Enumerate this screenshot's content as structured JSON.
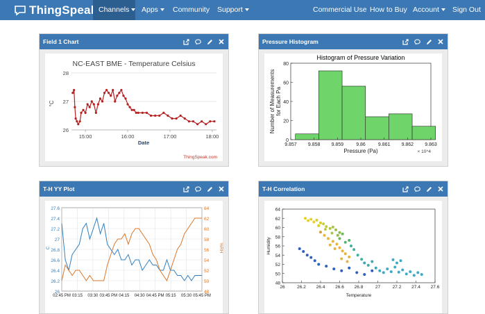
{
  "nav": {
    "brand": "ThingSpeak",
    "brand_tm": "™",
    "items": [
      {
        "label": "Channels",
        "dropdown": true,
        "active": true
      },
      {
        "label": "Apps",
        "dropdown": true
      },
      {
        "label": "Community",
        "dropdown": false
      },
      {
        "label": "Support",
        "dropdown": true
      }
    ],
    "right_items": [
      {
        "label": "Commercial Use",
        "dropdown": false
      },
      {
        "label": "How to Buy",
        "dropdown": false
      },
      {
        "label": "Account",
        "dropdown": true
      },
      {
        "label": "Sign Out",
        "dropdown": false
      }
    ]
  },
  "panels": {
    "field1": {
      "title": "Field 1 Chart"
    },
    "histogram": {
      "title": "Pressure Histogram"
    },
    "yy": {
      "title": "T-H YY Plot"
    },
    "corr": {
      "title": "T-H Correlation"
    }
  },
  "colors": {
    "nav": "#3c78b4",
    "nav_active": "#2d5e90",
    "line_red": "#b52020",
    "bar_green": "#6fd46a",
    "blue": "#2f7fc1",
    "orange": "#d9762a"
  },
  "chart_data": [
    {
      "id": "field1",
      "type": "line",
      "title": "NC-EAST BME - Temperature Celsius",
      "xlabel": "Date",
      "ylabel": "°C",
      "credit": "ThingSpeak.com",
      "x_ticks": [
        {
          "v": 14.75,
          "label": "15:00"
        },
        {
          "v": 15.75,
          "label": "16:00"
        },
        {
          "v": 16.75,
          "label": "17:00"
        },
        {
          "v": 17.75,
          "label": "18:00"
        }
      ],
      "y_ticks": [
        26,
        27,
        28
      ],
      "xlim": [
        14.42,
        17.85
      ],
      "ylim": [
        26,
        28
      ],
      "x": [
        14.45,
        14.48,
        14.5,
        14.52,
        14.55,
        14.58,
        14.62,
        14.65,
        14.7,
        14.75,
        14.8,
        14.85,
        14.9,
        14.95,
        15.0,
        15.05,
        15.1,
        15.15,
        15.2,
        15.25,
        15.3,
        15.35,
        15.4,
        15.45,
        15.5,
        15.55,
        15.6,
        15.65,
        15.7,
        15.75,
        15.8,
        15.85,
        15.9,
        15.95,
        16.0,
        16.1,
        16.2,
        16.3,
        16.4,
        16.5,
        16.6,
        16.7,
        16.8,
        16.9,
        17.0,
        17.1,
        17.2,
        17.3,
        17.4,
        17.5,
        17.6,
        17.7,
        17.8
      ],
      "y": [
        27.3,
        27.4,
        26.8,
        26.4,
        26.3,
        26.2,
        26.3,
        26.6,
        26.7,
        26.6,
        26.9,
        26.8,
        27.0,
        26.9,
        26.6,
        26.9,
        27.1,
        27.0,
        27.3,
        27.4,
        27.3,
        27.2,
        27.4,
        27.0,
        27.2,
        27.3,
        27.4,
        27.2,
        27.1,
        26.9,
        26.8,
        26.7,
        26.7,
        26.6,
        26.6,
        26.6,
        26.6,
        26.5,
        26.5,
        26.5,
        26.6,
        26.5,
        26.4,
        26.4,
        26.5,
        26.4,
        26.3,
        26.3,
        26.2,
        26.3,
        26.2,
        26.3,
        26.3
      ]
    },
    {
      "id": "histogram",
      "type": "bar",
      "title": "Histogram of Pressure Variation",
      "xlabel": "Pressure (Pa)",
      "ylabel": "Number of Measurements for Each Pa",
      "x_multiplier": "× 10^4",
      "x_ticks": [
        9.857,
        9.858,
        9.859,
        9.86,
        9.861,
        9.862,
        9.863
      ],
      "y_ticks": [
        0,
        20,
        40,
        60,
        80
      ],
      "xlim": [
        9.857,
        9.863
      ],
      "ylim": [
        0,
        80
      ],
      "bins": [
        [
          9.8572,
          9.8582
        ],
        [
          9.8582,
          9.8592
        ],
        [
          9.8592,
          9.8602
        ],
        [
          9.8602,
          9.8612
        ],
        [
          9.8612,
          9.8622
        ],
        [
          9.8622,
          9.8632
        ]
      ],
      "values": [
        6,
        72,
        56,
        24,
        27,
        14
      ]
    },
    {
      "id": "yy",
      "type": "line",
      "ylabel_left": "C",
      "ylabel_right": "%RH",
      "x_ticks": [
        "02:45 PM",
        "03:15",
        "03:30",
        "03:45 PM",
        "04:15",
        "04:30",
        "04:45 PM",
        "05:15",
        "05:30",
        "05:45 PM"
      ],
      "y_left_ticks": [
        26,
        26.2,
        26.4,
        26.6,
        26.8,
        27,
        27.2,
        27.4,
        27.6
      ],
      "y_right_ticks": [
        48,
        50,
        52,
        54,
        56,
        58,
        60,
        62,
        64
      ],
      "ylim_left": [
        26,
        27.6
      ],
      "ylim_right": [
        48,
        64
      ],
      "x": [
        0,
        1,
        2,
        3,
        4,
        5,
        6,
        7,
        8,
        9,
        10,
        11,
        12,
        13,
        14,
        15,
        16,
        17,
        18,
        19,
        20,
        21,
        22,
        23,
        24,
        25,
        26,
        27,
        28,
        29,
        30,
        31,
        32,
        33,
        34,
        35,
        36,
        37,
        38,
        39,
        40
      ],
      "series": [
        {
          "name": "Temperature",
          "axis": "left",
          "values": [
            27.3,
            26.6,
            26.4,
            26.7,
            26.8,
            26.9,
            27.2,
            27.3,
            27.0,
            27.2,
            27.4,
            27.1,
            27.3,
            26.9,
            26.8,
            26.7,
            26.8,
            26.6,
            26.6,
            26.7,
            26.5,
            26.6,
            26.6,
            26.4,
            26.5,
            26.6,
            26.5,
            26.5,
            26.4,
            26.4,
            26.6,
            26.4,
            26.4,
            26.3,
            26.3,
            26.2,
            26.3,
            26.2,
            26.3,
            26.3,
            26.3
          ]
        },
        {
          "name": "Humidity",
          "axis": "right",
          "values": [
            50,
            53,
            52,
            51,
            52,
            52,
            51,
            50,
            51,
            50,
            50,
            50,
            50,
            53,
            55,
            57,
            58,
            58,
            59,
            57,
            59,
            60,
            60,
            59,
            58,
            57,
            55,
            54,
            52,
            51,
            50,
            52,
            54,
            56,
            57,
            59,
            60,
            61,
            62,
            62,
            62
          ]
        }
      ]
    },
    {
      "id": "corr",
      "type": "scatter",
      "xlabel": "Temperature",
      "ylabel": "Humidity",
      "x_ticks": [
        26,
        26.2,
        26.4,
        26.6,
        26.8,
        27,
        27.2,
        27.4,
        27.6
      ],
      "y_ticks": [
        48,
        50,
        52,
        54,
        56,
        58,
        60,
        62,
        64
      ],
      "xlim": [
        26,
        27.6
      ],
      "ylim": [
        48,
        64
      ],
      "points": [
        [
          26.24,
          62.0,
          "#e8d21c"
        ],
        [
          26.27,
          61.5,
          "#e8d21c"
        ],
        [
          26.3,
          61.8,
          "#e8d21c"
        ],
        [
          26.33,
          61.2,
          "#e8d21c"
        ],
        [
          26.36,
          61.6,
          "#d8d020"
        ],
        [
          26.4,
          61.0,
          "#d8d020"
        ],
        [
          26.43,
          60.8,
          "#c8cf30"
        ],
        [
          26.46,
          60.2,
          "#c0cc35"
        ],
        [
          26.5,
          59.8,
          "#b0c840"
        ],
        [
          26.53,
          60.1,
          "#a8c545"
        ],
        [
          26.56,
          59.5,
          "#98c050"
        ],
        [
          26.6,
          58.9,
          "#88bb55"
        ],
        [
          26.63,
          58.6,
          "#70b560"
        ],
        [
          26.38,
          60.4,
          "#d8d020"
        ],
        [
          26.45,
          59.6,
          "#c0cc35"
        ],
        [
          26.52,
          58.8,
          "#a8c545"
        ],
        [
          26.58,
          58.3,
          "#90bd52"
        ],
        [
          26.4,
          59.0,
          "#d0a040"
        ],
        [
          26.44,
          58.3,
          "#e6b540"
        ],
        [
          26.48,
          57.6,
          "#e6b540"
        ],
        [
          26.53,
          57.0,
          "#e6b540"
        ],
        [
          26.57,
          56.4,
          "#e6b540"
        ],
        [
          26.6,
          55.6,
          "#e6b540"
        ],
        [
          26.63,
          54.9,
          "#e6b540"
        ],
        [
          26.66,
          54.3,
          "#e6b540"
        ],
        [
          26.7,
          53.6,
          "#e6b540"
        ],
        [
          26.5,
          56.2,
          "#e6b540"
        ],
        [
          26.55,
          55.4,
          "#e6b540"
        ],
        [
          26.62,
          53.2,
          "#e6b540"
        ],
        [
          26.68,
          52.6,
          "#e6b540"
        ],
        [
          26.72,
          56.0,
          "#3fb0a0"
        ],
        [
          26.75,
          55.2,
          "#3fb0a0"
        ],
        [
          26.79,
          54.0,
          "#3fb0a0"
        ],
        [
          26.83,
          53.1,
          "#3fb0a0"
        ],
        [
          26.86,
          52.3,
          "#3fa8b0"
        ],
        [
          26.9,
          51.8,
          "#3fa8b0"
        ],
        [
          26.94,
          52.6,
          "#3fa8b0"
        ],
        [
          26.98,
          51.2,
          "#3fa8b0"
        ],
        [
          27.02,
          50.6,
          "#3fa8c0"
        ],
        [
          27.06,
          50.2,
          "#3fa8c0"
        ],
        [
          27.1,
          51.0,
          "#40a8c8"
        ],
        [
          27.14,
          50.4,
          "#40a8c8"
        ],
        [
          27.18,
          51.4,
          "#40a8c8"
        ],
        [
          27.22,
          50.3,
          "#40a8c8"
        ],
        [
          27.26,
          50.8,
          "#40a8c8"
        ],
        [
          27.3,
          49.9,
          "#40a8c8"
        ],
        [
          27.34,
          50.4,
          "#40a8c8"
        ],
        [
          27.38,
          49.6,
          "#40a8c8"
        ],
        [
          27.42,
          50.2,
          "#40a8c8"
        ],
        [
          27.46,
          49.8,
          "#40a8c8"
        ],
        [
          27.2,
          52.3,
          "#40a8c8"
        ],
        [
          27.24,
          52.8,
          "#40a8c8"
        ],
        [
          27.16,
          53.0,
          "#40a8c8"
        ],
        [
          26.18,
          55.4,
          "#2f5fbf"
        ],
        [
          26.22,
          54.8,
          "#2f5fbf"
        ],
        [
          26.26,
          54.0,
          "#2f5fbf"
        ],
        [
          26.3,
          53.5,
          "#2f5fbf"
        ],
        [
          26.34,
          52.8,
          "#2f5fbf"
        ],
        [
          26.38,
          52.0,
          "#2f5fbf"
        ],
        [
          26.46,
          51.6,
          "#2f5fbf"
        ],
        [
          26.54,
          51.0,
          "#2f5fbf"
        ],
        [
          26.62,
          50.6,
          "#2f5fbf"
        ],
        [
          26.7,
          51.2,
          "#2f5fbf"
        ],
        [
          26.78,
          50.2,
          "#2f5fbf"
        ],
        [
          26.86,
          49.8,
          "#2f5fbf"
        ],
        [
          26.94,
          50.6,
          "#2f5fbf"
        ],
        [
          26.6,
          57.6,
          "#70b560"
        ],
        [
          26.66,
          56.8,
          "#5ab070"
        ],
        [
          26.7,
          57.2,
          "#5ab070"
        ]
      ]
    }
  ]
}
